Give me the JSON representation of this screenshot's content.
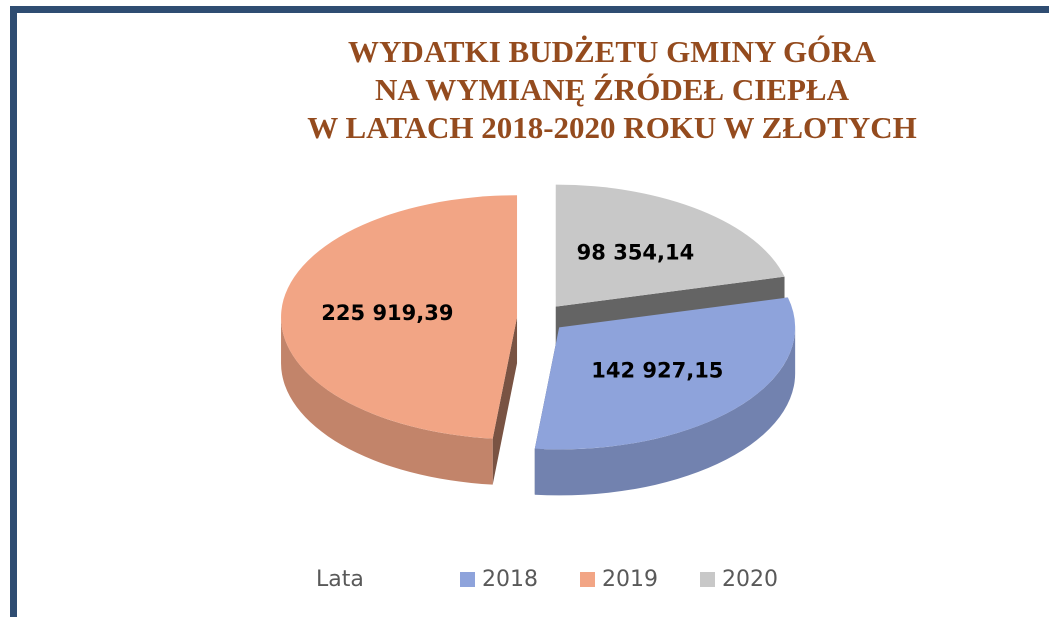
{
  "chart_data": {
    "type": "pie",
    "title": [
      "WYDATKI BUDŻETU GMINY GÓRA",
      "NA WYMIANĘ ŹRÓDEŁ CIEPŁA",
      "W LATACH 2018-2020 ROKU W ZŁOTYCH"
    ],
    "legend_title": "Lata",
    "categories": [
      "2018",
      "2019",
      "2020"
    ],
    "values": [
      142927.15,
      225919.39,
      98354.14
    ],
    "value_labels": [
      "142 927,15",
      "225 919,39",
      "98 354,14"
    ],
    "colors": [
      "#8ea3db",
      "#f2a585",
      "#c8c8c8"
    ],
    "legend": "bottom"
  }
}
